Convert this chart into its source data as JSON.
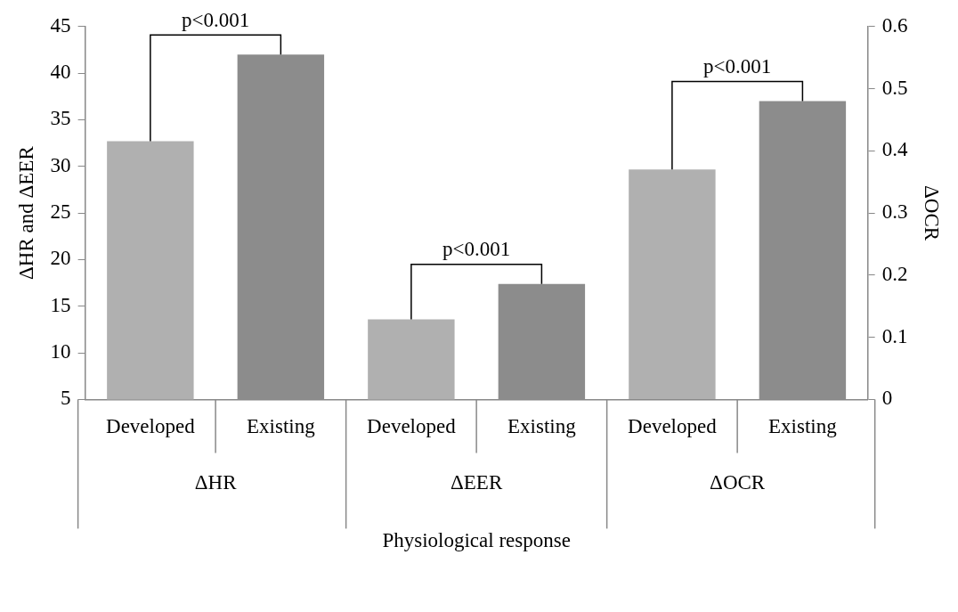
{
  "chart_data": {
    "type": "bar",
    "xlabel": "Physiological response",
    "ylabel": "ΔHR and ΔEER",
    "y2label": "ΔOCR",
    "categories": [
      "Developed",
      "Existing",
      "Developed",
      "Existing",
      "Developed",
      "Existing"
    ],
    "series": [
      {
        "colors": [
          "#b0b0b0",
          "#8c8c8c",
          "#b0b0b0",
          "#8c8c8c",
          "#b0b0b0",
          "#8c8c8c"
        ],
        "values": [
          32.7,
          42.0,
          13.6,
          17.4,
          null,
          null
        ]
      },
      {
        "axis": "y2",
        "colors": [
          "#b0b0b0",
          "#8c8c8c",
          "#b0b0b0",
          "#8c8c8c",
          "#b0b0b0",
          "#8c8c8c"
        ],
        "values": [
          null,
          null,
          null,
          null,
          0.37,
          0.48
        ]
      }
    ],
    "ylim": [
      5,
      45
    ],
    "yticks": [
      5,
      10,
      15,
      20,
      25,
      30,
      35,
      40,
      45
    ],
    "y2lim": [
      0,
      0.6
    ],
    "y2ticks": [
      0,
      0.1,
      0.2,
      0.3,
      0.4,
      0.5,
      0.6
    ],
    "grid": false,
    "legend": false,
    "annotations": [
      "p<0.001",
      "p<0.001",
      "p<0.001",
      "ΔHR",
      "ΔEER",
      "ΔOCR"
    ]
  }
}
